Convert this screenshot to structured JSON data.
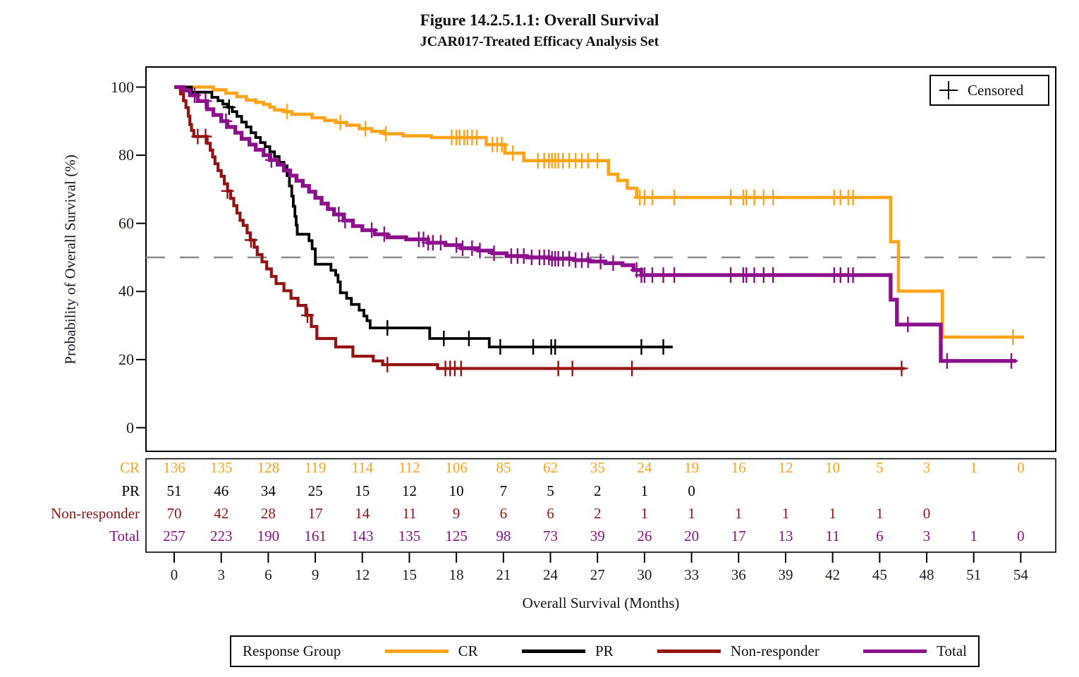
{
  "title": "Figure 14.2.5.1.1: Overall Survival",
  "subtitle": "JCAR017-Treated Efficacy Analysis Set",
  "censored_legend_label": "Censored",
  "legend": {
    "title": "Response Group",
    "entries": [
      {
        "label": "CR",
        "color": "#FFA319"
      },
      {
        "label": "PR",
        "color": "#000000"
      },
      {
        "label": "Non-responder",
        "color": "#941414"
      },
      {
        "label": "Total",
        "color": "#8C0F8C"
      }
    ]
  },
  "y_axis": {
    "label": "Probability of Overall Survival (%)",
    "ticks": [
      100,
      80,
      60,
      40,
      20,
      0
    ]
  },
  "x_axis": {
    "label": "Overall Survival (Months)",
    "ticks": [
      0,
      3,
      6,
      9,
      12,
      15,
      18,
      21,
      24,
      27,
      30,
      33,
      36,
      39,
      42,
      45,
      48,
      51,
      54
    ]
  },
  "risk_table": {
    "rows": [
      {
        "label": "CR",
        "color": "#FFA319",
        "values": [
          136,
          135,
          128,
          119,
          114,
          112,
          106,
          85,
          62,
          35,
          24,
          19,
          16,
          12,
          10,
          5,
          3,
          1,
          0
        ]
      },
      {
        "label": "PR",
        "color": "#000000",
        "values": [
          51,
          46,
          34,
          25,
          15,
          12,
          10,
          7,
          5,
          2,
          1,
          0
        ]
      },
      {
        "label": "Non-responder",
        "color": "#941414",
        "values": [
          70,
          42,
          28,
          17,
          14,
          11,
          9,
          6,
          6,
          2,
          1,
          1,
          1,
          1,
          1,
          1,
          0
        ]
      },
      {
        "label": "Total",
        "color": "#8C0F8C",
        "values": [
          257,
          223,
          190,
          161,
          143,
          135,
          125,
          98,
          73,
          39,
          26,
          20,
          17,
          13,
          11,
          6,
          3,
          1,
          0
        ]
      }
    ]
  },
  "chart_data": {
    "type": "line",
    "subtype": "kaplan-meier-step",
    "title": "Figure 14.2.5.1.1: Overall Survival",
    "xlabel": "Overall Survival (Months)",
    "ylabel": "Probability of Overall Survival (%)",
    "xlim": [
      0,
      54
    ],
    "ylim": [
      0,
      100
    ],
    "grid": false,
    "reference_line_pct": 50,
    "series": [
      {
        "name": "CR",
        "color": "#FFA319",
        "stroke_width": 4.6,
        "start": [
          0,
          100
        ],
        "end_month": 54.2,
        "steps": [
          [
            2.5,
            99.2
          ],
          [
            3.3,
            98.2
          ],
          [
            4,
            97.2
          ],
          [
            4.6,
            96.2
          ],
          [
            5.2,
            95.5
          ],
          [
            5.7,
            94.9
          ],
          [
            6.1,
            94.1
          ],
          [
            6.4,
            93.3
          ],
          [
            7,
            92.8
          ],
          [
            7.5,
            92
          ],
          [
            8.8,
            91
          ],
          [
            9.6,
            90.2
          ],
          [
            10.3,
            89.6
          ],
          [
            11,
            88.8
          ],
          [
            11.8,
            87.8
          ],
          [
            12.6,
            87
          ],
          [
            13.4,
            86.3
          ],
          [
            14.6,
            85.7
          ],
          [
            16.4,
            85.2
          ],
          [
            19.9,
            83.1
          ],
          [
            21.1,
            80.6
          ],
          [
            22.3,
            78.4
          ],
          [
            27.7,
            74.4
          ],
          [
            28.3,
            72.6
          ],
          [
            28.9,
            70.3
          ],
          [
            29.5,
            67.6
          ],
          [
            45.7,
            54.6
          ],
          [
            46.2,
            40.1
          ],
          [
            49,
            26.6
          ]
        ],
        "censor_months": [
          7.2,
          10.6,
          12.2,
          13.5,
          17.7,
          18,
          18.2,
          18.5,
          18.7,
          19,
          19.3,
          20.3,
          20.6,
          20.9,
          21.6,
          23.2,
          23.6,
          23.9,
          24.1,
          24.3,
          24.5,
          24.8,
          25.2,
          25.6,
          26,
          26.4,
          27,
          29.7,
          30,
          30.5,
          31.9,
          35.5,
          36.3,
          36.5,
          37,
          37.6,
          38.2,
          42.1,
          42.5,
          43,
          43.3,
          53.5
        ]
      },
      {
        "name": "PR",
        "color": "#000000",
        "stroke_width": 3.8,
        "start": [
          0,
          100
        ],
        "end_month": 31.8,
        "steps": [
          [
            1.1,
            98.5
          ],
          [
            2.4,
            97
          ],
          [
            2.8,
            96
          ],
          [
            3.1,
            95
          ],
          [
            3.4,
            94.1
          ],
          [
            3.7,
            92.8
          ],
          [
            4,
            91.4
          ],
          [
            4.3,
            89.7
          ],
          [
            4.6,
            88.3
          ],
          [
            4.9,
            86.6
          ],
          [
            5.2,
            85.2
          ],
          [
            5.5,
            83.7
          ],
          [
            5.8,
            82.5
          ],
          [
            6.1,
            81
          ],
          [
            6.4,
            79.6
          ],
          [
            6.7,
            77.9
          ],
          [
            7,
            76.9
          ],
          [
            7.2,
            74
          ],
          [
            7.35,
            71
          ],
          [
            7.5,
            68
          ],
          [
            7.6,
            65
          ],
          [
            7.7,
            62
          ],
          [
            7.78,
            59.5
          ],
          [
            7.85,
            56.8
          ],
          [
            8.6,
            54.9
          ],
          [
            8.8,
            52.5
          ],
          [
            9,
            48
          ],
          [
            10,
            46.2
          ],
          [
            10.3,
            44.8
          ],
          [
            10.45,
            42.8
          ],
          [
            10.6,
            39.6
          ],
          [
            11,
            38
          ],
          [
            11.3,
            36.2
          ],
          [
            11.8,
            34.5
          ],
          [
            12.1,
            32.8
          ],
          [
            12.3,
            31.4
          ],
          [
            12.5,
            29.3
          ],
          [
            16.3,
            26.2
          ],
          [
            20.1,
            23.7
          ]
        ],
        "censor_months": [
          3.5,
          13.6,
          17.2,
          18.8,
          20.8,
          22.9,
          24.05,
          24.3,
          29.8,
          31.2
        ]
      },
      {
        "name": "Non-responder",
        "color": "#941414",
        "stroke_width": 4.2,
        "start": [
          0,
          100
        ],
        "end_month": 46.6,
        "steps": [
          [
            0.4,
            98
          ],
          [
            0.6,
            96
          ],
          [
            0.75,
            94
          ],
          [
            0.9,
            91.5
          ],
          [
            1,
            89
          ],
          [
            1.1,
            87.3
          ],
          [
            1.25,
            85.5
          ],
          [
            2.1,
            83.5
          ],
          [
            2.3,
            81.5
          ],
          [
            2.45,
            79.5
          ],
          [
            2.6,
            77.5
          ],
          [
            2.8,
            75.5
          ],
          [
            3,
            73.8
          ],
          [
            3.2,
            71.6
          ],
          [
            3.4,
            69.5
          ],
          [
            3.6,
            67.3
          ],
          [
            3.8,
            65.2
          ],
          [
            4,
            63
          ],
          [
            4.2,
            60.9
          ],
          [
            4.4,
            59.4
          ],
          [
            4.65,
            57.2
          ],
          [
            4.85,
            55.1
          ],
          [
            5.1,
            53
          ],
          [
            5.3,
            50.8
          ],
          [
            5.6,
            48.7
          ],
          [
            5.9,
            46.6
          ],
          [
            6.2,
            44.4
          ],
          [
            6.5,
            42.3
          ],
          [
            7,
            40.2
          ],
          [
            7.45,
            38
          ],
          [
            7.9,
            35.9
          ],
          [
            8.4,
            33
          ],
          [
            8.75,
            29.7
          ],
          [
            9.1,
            26.2
          ],
          [
            10.3,
            23.7
          ],
          [
            11.4,
            21
          ],
          [
            12.7,
            19.6
          ],
          [
            13.3,
            18.5
          ],
          [
            16.8,
            17.4
          ]
        ],
        "censor_months": [
          1.5,
          2,
          3.4,
          4.9,
          8.5,
          13.6,
          17.3,
          17.6,
          17.9,
          18.3,
          24.5,
          25.4,
          29.2,
          46.4
        ]
      },
      {
        "name": "Total",
        "color": "#8C0F8C",
        "stroke_width": 5.4,
        "start": [
          0,
          100
        ],
        "end_month": 53.7,
        "steps": [
          [
            0.6,
            99
          ],
          [
            1,
            97.6
          ],
          [
            1.5,
            95.9
          ],
          [
            2.1,
            93.5
          ],
          [
            2.5,
            91.8
          ],
          [
            3,
            90
          ],
          [
            3.4,
            88.3
          ],
          [
            3.9,
            86.6
          ],
          [
            4.3,
            84.8
          ],
          [
            4.8,
            83.1
          ],
          [
            5.2,
            81.6
          ],
          [
            5.7,
            80
          ],
          [
            6.1,
            78.6
          ],
          [
            6.6,
            77.2
          ],
          [
            7,
            75.5
          ],
          [
            7.4,
            74
          ],
          [
            7.8,
            72.5
          ],
          [
            8.2,
            71
          ],
          [
            8.6,
            69.3
          ],
          [
            9,
            67.5
          ],
          [
            9.4,
            65.8
          ],
          [
            9.8,
            64.2
          ],
          [
            10.2,
            62.6
          ],
          [
            10.8,
            60.8
          ],
          [
            11.4,
            59.2
          ],
          [
            12,
            58
          ],
          [
            12.8,
            56.8
          ],
          [
            13.6,
            55.9
          ],
          [
            14.8,
            55.3
          ],
          [
            16.2,
            54.3
          ],
          [
            17.3,
            53.6
          ],
          [
            18.3,
            52.7
          ],
          [
            19.4,
            52
          ],
          [
            20.3,
            51.2
          ],
          [
            21.2,
            50.4
          ],
          [
            22.5,
            50
          ],
          [
            24,
            49.6
          ],
          [
            25.5,
            49.2
          ],
          [
            26.5,
            48.8
          ],
          [
            27.5,
            48.3
          ],
          [
            28.6,
            47.7
          ],
          [
            29.3,
            46.3
          ],
          [
            29.8,
            44.8
          ],
          [
            45.7,
            37.6
          ],
          [
            46.1,
            30.3
          ],
          [
            48.9,
            19.6
          ]
        ],
        "censor_months": [
          1.3,
          2,
          3.3,
          6.2,
          10.5,
          10.9,
          12.6,
          13.4,
          15.6,
          15.9,
          16.2,
          16.5,
          17,
          18,
          18.4,
          19,
          19.5,
          20.4,
          21.5,
          21.9,
          22.3,
          22.8,
          23.3,
          23.6,
          23.9,
          24.1,
          24.3,
          24.5,
          24.8,
          25.2,
          25.6,
          26,
          26.4,
          27.2,
          28,
          29.5,
          29.8,
          30,
          30.5,
          31.2,
          31.9,
          35.5,
          36.3,
          36.5,
          37,
          37.6,
          38.2,
          42.1,
          42.5,
          43,
          43.3,
          46.8,
          49.3,
          53.4
        ]
      }
    ]
  }
}
